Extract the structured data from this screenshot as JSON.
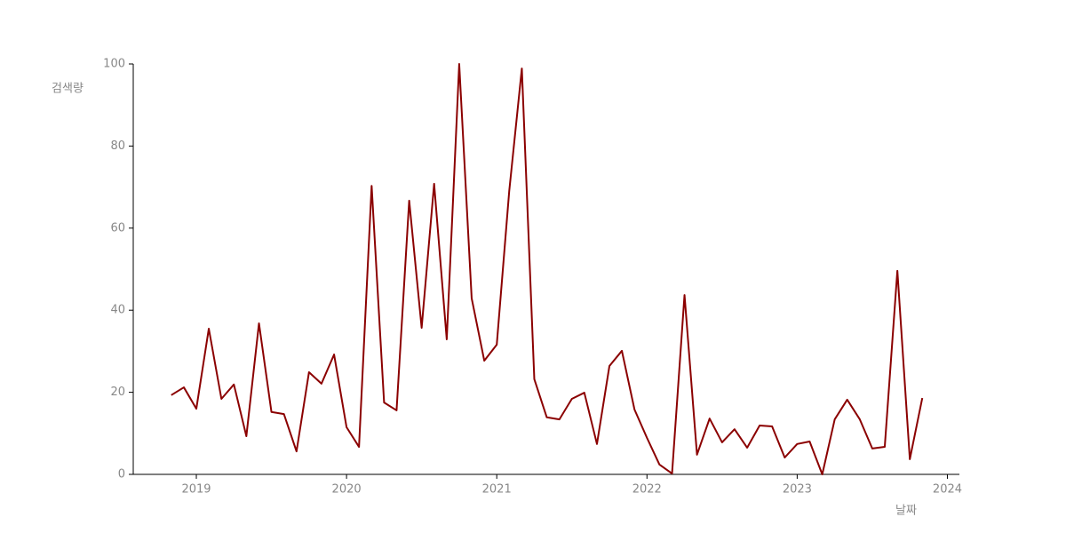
{
  "chart_data": {
    "type": "line",
    "xlabel": "날짜",
    "ylabel": "검색량",
    "x": [
      2018.833,
      2018.917,
      2019.0,
      2019.083,
      2019.167,
      2019.25,
      2019.333,
      2019.417,
      2019.5,
      2019.583,
      2019.667,
      2019.75,
      2019.833,
      2019.917,
      2020.0,
      2020.083,
      2020.167,
      2020.25,
      2020.333,
      2020.417,
      2020.5,
      2020.583,
      2020.667,
      2020.75,
      2020.833,
      2020.917,
      2021.0,
      2021.083,
      2021.167,
      2021.25,
      2021.333,
      2021.417,
      2021.5,
      2021.583,
      2021.667,
      2021.75,
      2021.833,
      2021.917,
      2022.0,
      2022.083,
      2022.167,
      2022.25,
      2022.333,
      2022.417,
      2022.5,
      2022.583,
      2022.667,
      2022.75,
      2022.833,
      2022.917,
      2023.0,
      2023.083,
      2023.167,
      2023.25,
      2023.333,
      2023.417,
      2023.5,
      2023.583,
      2023.667,
      2023.75,
      2023.833
    ],
    "values": [
      19.3,
      21.2,
      16.0,
      35.5,
      18.4,
      21.9,
      9.3,
      36.8,
      15.2,
      14.7,
      5.6,
      24.9,
      22.1,
      29.2,
      11.5,
      6.7,
      70.3,
      17.5,
      15.6,
      66.7,
      35.7,
      70.8,
      32.9,
      100,
      42.9,
      27.7,
      31.6,
      69.0,
      98.9,
      23.2,
      13.9,
      13.4,
      18.4,
      19.9,
      7.4,
      26.4,
      30.1,
      15.8,
      8.9,
      2.4,
      0.2,
      43.7,
      4.8,
      13.6,
      7.8,
      11.0,
      6.5,
      11.9,
      11.7,
      4.1,
      7.4,
      8.0,
      0,
      13.4,
      18.2,
      13.4,
      6.3,
      6.7,
      49.6,
      3.7,
      18.6
    ],
    "color": "#8b0000",
    "xlim": [
      2018.58,
      2024.08
    ],
    "xticks": [
      2019,
      2020,
      2021,
      2022,
      2023,
      2024
    ],
    "ylim": [
      0,
      100
    ],
    "yticks": [
      0,
      20,
      40,
      60,
      80,
      100
    ]
  }
}
